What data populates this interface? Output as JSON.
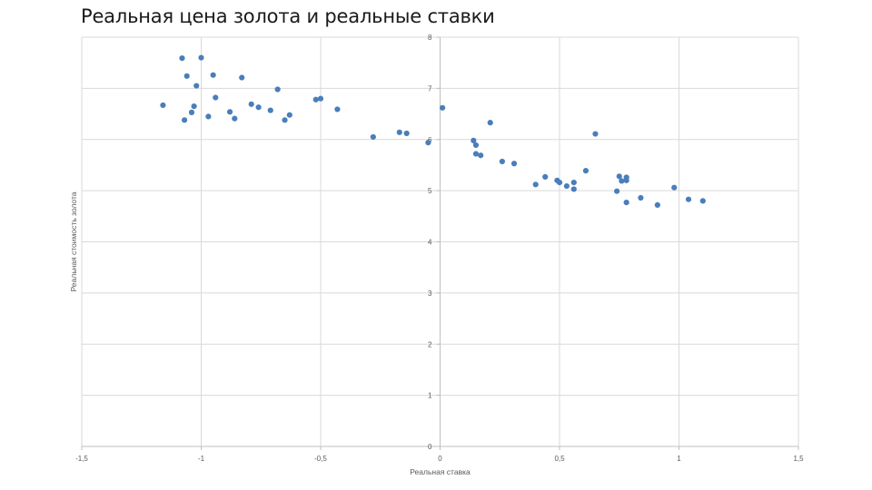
{
  "slide": {
    "title": "Реальная цена золота и реальные ставки"
  },
  "chart_data": {
    "type": "scatter",
    "title": "",
    "xlabel": "Реальная ставка",
    "ylabel": "Реальная стоимость золота",
    "xlim": [
      -1.5,
      1.5
    ],
    "ylim": [
      0,
      8
    ],
    "xticks": [
      -1.5,
      -1,
      -0.5,
      0,
      0.5,
      1,
      1.5
    ],
    "xtick_labels": [
      "-1,5",
      "-1",
      "-0,5",
      "0",
      "0,5",
      "1",
      "1,5"
    ],
    "yticks": [
      0,
      1,
      2,
      3,
      4,
      5,
      6,
      7,
      8
    ],
    "ytick_labels": [
      "0",
      "1",
      "2",
      "3",
      "4",
      "5",
      "6",
      "7",
      "8"
    ],
    "grid": true,
    "marker_color": "#4a7ebb",
    "gridline_color": "#d9d9d9",
    "axis_color": "#bfbfbf",
    "points": [
      {
        "x": -1.16,
        "y": 6.67
      },
      {
        "x": -1.08,
        "y": 7.59
      },
      {
        "x": -1.07,
        "y": 6.38
      },
      {
        "x": -1.06,
        "y": 7.24
      },
      {
        "x": -1.04,
        "y": 6.53
      },
      {
        "x": -1.03,
        "y": 6.65
      },
      {
        "x": -1.02,
        "y": 7.05
      },
      {
        "x": -1.0,
        "y": 7.6
      },
      {
        "x": -0.97,
        "y": 6.45
      },
      {
        "x": -0.95,
        "y": 7.26
      },
      {
        "x": -0.94,
        "y": 6.82
      },
      {
        "x": -0.88,
        "y": 6.54
      },
      {
        "x": -0.86,
        "y": 6.41
      },
      {
        "x": -0.83,
        "y": 7.21
      },
      {
        "x": -0.79,
        "y": 6.69
      },
      {
        "x": -0.76,
        "y": 6.63
      },
      {
        "x": -0.71,
        "y": 6.57
      },
      {
        "x": -0.68,
        "y": 6.98
      },
      {
        "x": -0.65,
        "y": 6.38
      },
      {
        "x": -0.63,
        "y": 6.48
      },
      {
        "x": -0.52,
        "y": 6.78
      },
      {
        "x": -0.5,
        "y": 6.8
      },
      {
        "x": -0.43,
        "y": 6.59
      },
      {
        "x": -0.28,
        "y": 6.05
      },
      {
        "x": -0.17,
        "y": 6.14
      },
      {
        "x": -0.14,
        "y": 6.12
      },
      {
        "x": -0.05,
        "y": 5.94
      },
      {
        "x": 0.01,
        "y": 6.62
      },
      {
        "x": 0.14,
        "y": 5.98
      },
      {
        "x": 0.15,
        "y": 5.89
      },
      {
        "x": 0.15,
        "y": 5.72
      },
      {
        "x": 0.17,
        "y": 5.69
      },
      {
        "x": 0.21,
        "y": 6.33
      },
      {
        "x": 0.26,
        "y": 5.57
      },
      {
        "x": 0.31,
        "y": 5.53
      },
      {
        "x": 0.4,
        "y": 5.12
      },
      {
        "x": 0.44,
        "y": 5.27
      },
      {
        "x": 0.49,
        "y": 5.2
      },
      {
        "x": 0.5,
        "y": 5.16
      },
      {
        "x": 0.53,
        "y": 5.09
      },
      {
        "x": 0.56,
        "y": 5.16
      },
      {
        "x": 0.56,
        "y": 5.03
      },
      {
        "x": 0.61,
        "y": 5.39
      },
      {
        "x": 0.65,
        "y": 6.11
      },
      {
        "x": 0.74,
        "y": 4.99
      },
      {
        "x": 0.75,
        "y": 5.28
      },
      {
        "x": 0.76,
        "y": 5.19
      },
      {
        "x": 0.78,
        "y": 5.26
      },
      {
        "x": 0.78,
        "y": 5.2
      },
      {
        "x": 0.78,
        "y": 4.77
      },
      {
        "x": 0.84,
        "y": 4.86
      },
      {
        "x": 0.91,
        "y": 4.72
      },
      {
        "x": 0.98,
        "y": 5.06
      },
      {
        "x": 1.04,
        "y": 4.83
      },
      {
        "x": 1.1,
        "y": 4.8
      }
    ]
  }
}
